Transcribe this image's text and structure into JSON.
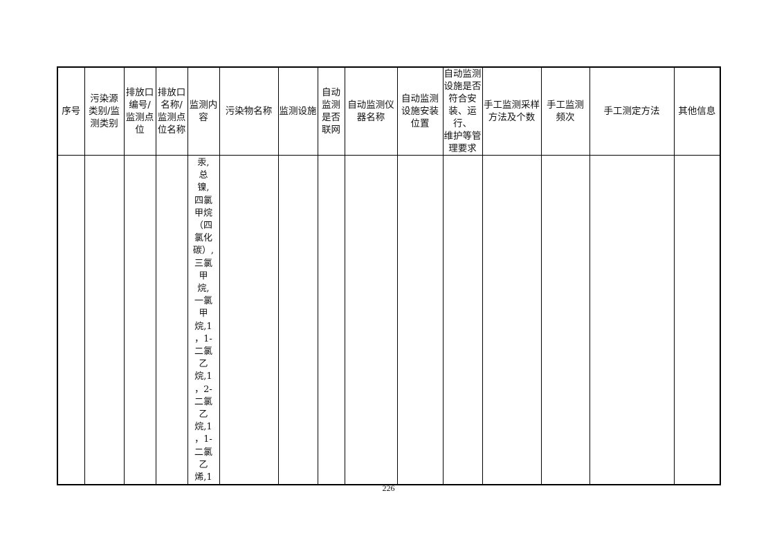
{
  "table": {
    "headers": [
      "序号",
      "污染源\n类别/监\n测类别",
      "排放口\n编号/\n监测点\n位",
      "排放口\n名称/\n监测点\n位名称",
      "监测内\n容",
      "污染物名称",
      "监测设施",
      "自动\n监测\n是否\n联网",
      "自动监测仪\n器名称",
      "自动监测\n设施安装\n位置",
      "自动监测\n设施是否\n符合安\n装、运行、\n维护等管\n理要求",
      "手工监测采样\n方法及个数",
      "手工监测\n频次",
      "手工测定方法",
      "其他信息"
    ],
    "row": [
      "",
      "",
      "",
      "",
      "汞,\n总\n镍,\n四氯\n甲烷\n（四\n氯化\n碳）,\n三氯\n甲\n烷,\n一氯\n甲\n烷,1\n，1-\n二氯\n乙\n烷,1\n，2-\n二氯\n乙\n烷,1\n，1-\n二氯\n乙\n烯,1",
      "",
      "",
      "",
      "",
      "",
      "",
      "",
      "",
      "",
      ""
    ]
  },
  "page_number": "226"
}
